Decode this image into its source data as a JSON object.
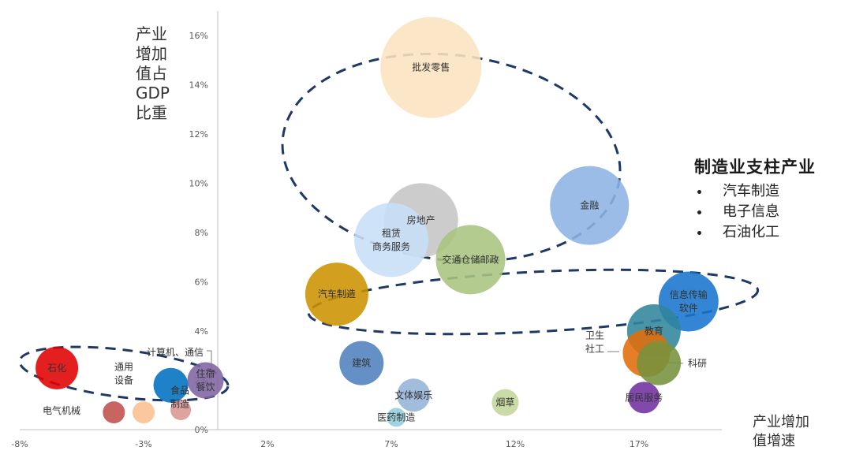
{
  "chart_data": {
    "type": "bubble",
    "ylabel": [
      "产业",
      "增加",
      "值占",
      "GDP",
      "比重"
    ],
    "xlabel": [
      "产业增加",
      "值增速"
    ],
    "xlim": [
      -8,
      20
    ],
    "ylim": [
      0,
      17
    ],
    "x_ticks": [
      "-8%",
      "-3%",
      "2%",
      "7%",
      "12%",
      "17%"
    ],
    "y_ticks": [
      "0%",
      "2%",
      "4%",
      "6%",
      "8%",
      "10%",
      "12%",
      "14%",
      "16%"
    ],
    "bubbles": [
      {
        "label": [
          "批发零售"
        ],
        "x": 8.6,
        "y": 14.7,
        "color": "#fbe3bf"
      },
      {
        "label": [
          "金融"
        ],
        "x": 15.0,
        "y": 9.1,
        "color": "#8db3e2"
      },
      {
        "label": [
          "房地产"
        ],
        "x": 8.2,
        "y": 8.5,
        "color": "#c5c5c5"
      },
      {
        "label": [
          "租赁",
          "商务服务"
        ],
        "x": 7.0,
        "y": 7.7,
        "color": "#c8dff7"
      },
      {
        "label": [
          "交通仓储邮政"
        ],
        "x": 10.2,
        "y": 6.9,
        "color": "#a9c47f"
      },
      {
        "label": [
          "汽车制造"
        ],
        "x": 4.8,
        "y": 5.5,
        "color": "#cc9200"
      },
      {
        "label": [
          "信息传输",
          "软件"
        ],
        "x": 19.0,
        "y": 5.2,
        "color": "#1874cd"
      },
      {
        "label": [
          "教育"
        ],
        "x": 17.6,
        "y": 4.0,
        "color": "#31859c"
      },
      {
        "label": [
          "卫生",
          "社工"
        ],
        "x": 17.3,
        "y": 3.1,
        "color": "#e36c09"
      },
      {
        "label": [
          "科研"
        ],
        "x": 17.8,
        "y": 2.7,
        "color": "#76923c"
      },
      {
        "label": [
          "居民服务"
        ],
        "x": 17.2,
        "y": 1.3,
        "color": "#7030a0"
      },
      {
        "label": [
          "建筑"
        ],
        "x": 5.8,
        "y": 2.7,
        "color": "#4f81bd"
      },
      {
        "label": [
          "文体娱乐"
        ],
        "x": 7.9,
        "y": 1.4,
        "color": "#95b3d7"
      },
      {
        "label": [
          "烟草"
        ],
        "x": 11.6,
        "y": 1.1,
        "color": "#c3d69b"
      },
      {
        "label": [
          "医药制造"
        ],
        "x": 7.2,
        "y": 0.5,
        "color": "#92cddc"
      },
      {
        "label": [
          "住宿",
          "餐饮"
        ],
        "x": -0.5,
        "y": 2.0,
        "color": "#8064a2"
      },
      {
        "label": [
          "计算机、通信"
        ],
        "x": -1.9,
        "y": 1.8,
        "color": "#0070c0"
      },
      {
        "label": [
          "石化"
        ],
        "x": -6.5,
        "y": 2.5,
        "color": "#e00000"
      },
      {
        "label": [
          "通用",
          "设备"
        ],
        "x": -3.0,
        "y": 0.7,
        "color": "#fac090"
      },
      {
        "label": [
          "食品",
          "制造"
        ],
        "x": -1.5,
        "y": 0.8,
        "color": "#d99694"
      },
      {
        "label": [
          "电气机械"
        ],
        "x": -4.2,
        "y": 0.7,
        "color": "#c0504d"
      }
    ],
    "annotation": {
      "title": "制造业支柱产业",
      "items": [
        "汽车制造",
        "电子信息",
        "石油化工"
      ]
    }
  }
}
